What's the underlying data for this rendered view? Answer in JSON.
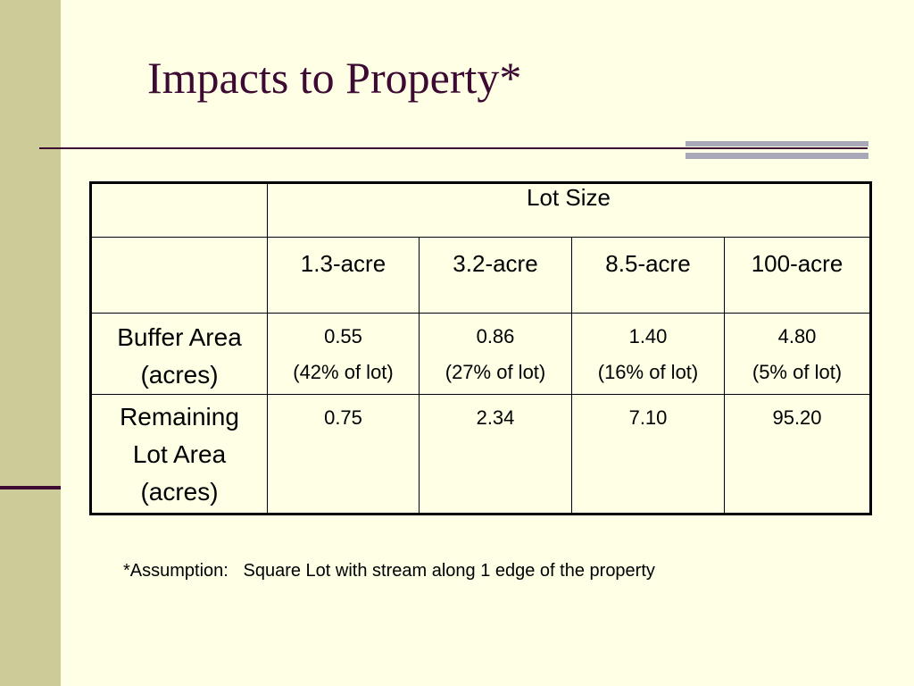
{
  "slide": {
    "title": "Impacts to Property*",
    "footnote": "*Assumption:   Square Lot with stream along 1 edge of the property"
  },
  "colors": {
    "background": "#FFFFE5",
    "left_band": "#CCCC99",
    "accent_dark": "#3D0A33",
    "rule_accent": "#A8A8B8"
  },
  "table": {
    "group_header": "Lot Size",
    "columns": [
      "1.3-acre",
      "3.2-acre",
      "8.5-acre",
      "100-acre"
    ],
    "rows": [
      {
        "label": [
          "Buffer Area",
          "(acres)"
        ],
        "cells": [
          {
            "value": "0.55",
            "pct": "(42% of lot)"
          },
          {
            "value": "0.86",
            "pct": "(27% of lot)"
          },
          {
            "value": "1.40",
            "pct": "(16% of lot)"
          },
          {
            "value": "4.80",
            "pct": "(5% of lot)"
          }
        ]
      },
      {
        "label": [
          "Remaining",
          "Lot Area",
          "(acres)"
        ],
        "cells": [
          {
            "value": "0.75"
          },
          {
            "value": "2.34"
          },
          {
            "value": "7.10"
          },
          {
            "value": "95.20"
          }
        ]
      }
    ]
  }
}
